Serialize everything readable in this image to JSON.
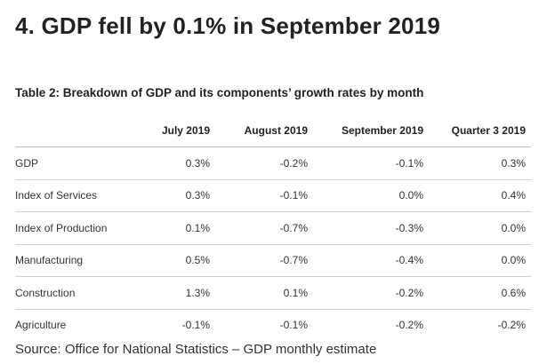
{
  "heading": "4.  GDP fell by 0.1% in September 2019",
  "table": {
    "caption": "Table 2: Breakdown of GDP and its components’ growth rates by month",
    "columns": [
      "",
      "July 2019",
      "August 2019",
      "September 2019",
      "Quarter 3 2019"
    ],
    "rows": [
      [
        "GDP",
        "0.3%",
        "-0.2%",
        "-0.1%",
        "0.3%"
      ],
      [
        "Index of Services",
        "0.3%",
        "-0.1%",
        "0.0%",
        "0.4%"
      ],
      [
        "Index of Production",
        "0.1%",
        "-0.7%",
        "-0.3%",
        "0.0%"
      ],
      [
        "Manufacturing",
        "0.5%",
        "-0.7%",
        "-0.4%",
        "0.0%"
      ],
      [
        "Construction",
        "1.3%",
        "0.1%",
        "-0.2%",
        "0.6%"
      ],
      [
        "Agriculture",
        "-0.1%",
        "-0.1%",
        "-0.2%",
        "-0.2%"
      ]
    ]
  },
  "source": "Source: Office for National Statistics – GDP monthly estimate"
}
